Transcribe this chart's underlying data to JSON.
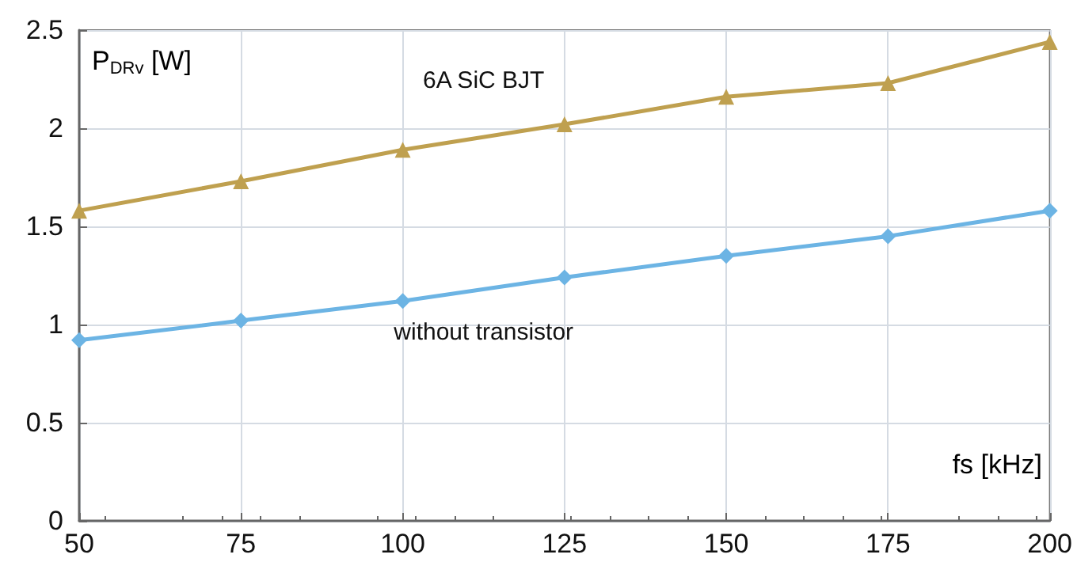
{
  "chart_data": {
    "type": "line",
    "xlabel": "fs [kHz]",
    "ylabel": "P$_{DRv}$ [W]",
    "x": [
      50,
      75,
      100,
      125,
      150,
      175,
      200
    ],
    "series": [
      {
        "name": "6A SiC BJT",
        "color": "#bfa04f",
        "marker": "triangle",
        "values": [
          1.58,
          1.73,
          1.89,
          2.02,
          2.16,
          2.23,
          2.44
        ]
      },
      {
        "name": "without transistor",
        "color": "#6cb4e4",
        "marker": "diamond",
        "values": [
          0.92,
          1.02,
          1.12,
          1.24,
          1.35,
          1.45,
          1.58
        ]
      }
    ],
    "xlim": [
      50,
      200
    ],
    "xticks": [
      50,
      75,
      100,
      125,
      150,
      175,
      200
    ],
    "ylim": [
      0,
      2.5
    ],
    "yticks": [
      0,
      0.5,
      1,
      1.5,
      2,
      2.5
    ],
    "grid": true,
    "legend": false
  }
}
